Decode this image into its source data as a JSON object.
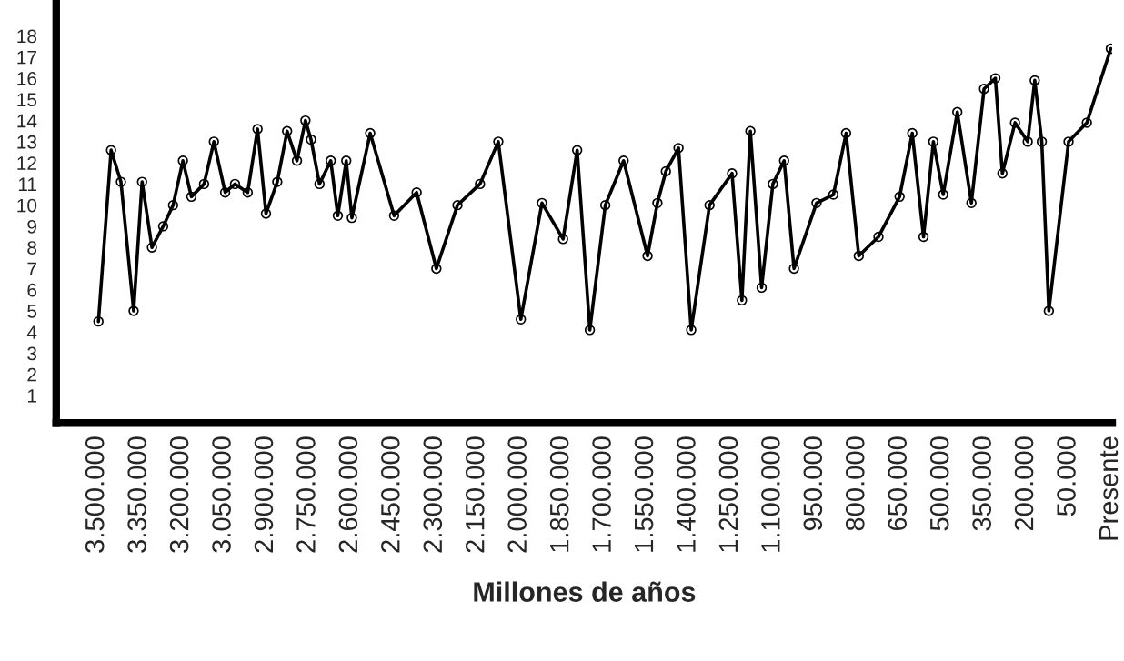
{
  "chart_data": {
    "type": "line",
    "xlabel": "Millones de años",
    "xlim": [
      3645000,
      -105000
    ],
    "ylim": [
      -0.3,
      19.7
    ],
    "xticks": [
      {
        "value": 3500000,
        "label": "3.500.000"
      },
      {
        "value": 3350000,
        "label": "3.350.000"
      },
      {
        "value": 3200000,
        "label": "3.200.000"
      },
      {
        "value": 3050000,
        "label": "3.050.000"
      },
      {
        "value": 2900000,
        "label": "2.900.000"
      },
      {
        "value": 2750000,
        "label": "2.750.000"
      },
      {
        "value": 2600000,
        "label": "2.600.000"
      },
      {
        "value": 2450000,
        "label": "2.450.000"
      },
      {
        "value": 2300000,
        "label": "2.300.000"
      },
      {
        "value": 2150000,
        "label": "2.150.000"
      },
      {
        "value": 2000000,
        "label": "2.000.000"
      },
      {
        "value": 1850000,
        "label": "1.850.000"
      },
      {
        "value": 1700000,
        "label": "1.700.000"
      },
      {
        "value": 1550000,
        "label": "1.550.000"
      },
      {
        "value": 1400000,
        "label": "1.400.000"
      },
      {
        "value": 1250000,
        "label": "1.250.000"
      },
      {
        "value": 1100000,
        "label": "1.100.000"
      },
      {
        "value": 950000,
        "label": "950.000"
      },
      {
        "value": 800000,
        "label": "800.000"
      },
      {
        "value": 650000,
        "label": "650.000"
      },
      {
        "value": 500000,
        "label": "500.000"
      },
      {
        "value": 350000,
        "label": "350.000"
      },
      {
        "value": 200000,
        "label": "200.000"
      },
      {
        "value": 50000,
        "label": "50.000"
      },
      {
        "value": -100000,
        "label": "Presente"
      }
    ],
    "yticks": [
      1,
      2,
      3,
      4,
      5,
      6,
      7,
      8,
      9,
      10,
      11,
      12,
      13,
      14,
      15,
      16,
      17,
      18
    ],
    "grid": false,
    "marker": "circle",
    "line_style": "solid",
    "series": [
      {
        "color": "#000000",
        "x": [
          3495000,
          3450000,
          3415000,
          3370000,
          3340000,
          3305000,
          3265000,
          3230000,
          3195000,
          3165000,
          3120000,
          3085000,
          3045000,
          3010000,
          2965000,
          2930000,
          2900000,
          2860000,
          2825000,
          2790000,
          2760000,
          2740000,
          2710000,
          2670000,
          2645000,
          2615000,
          2595000,
          2530000,
          2445000,
          2365000,
          2295000,
          2220000,
          2140000,
          2075000,
          1995000,
          1920000,
          1845000,
          1795000,
          1750000,
          1695000,
          1630000,
          1545000,
          1510000,
          1480000,
          1435000,
          1390000,
          1325000,
          1245000,
          1210000,
          1180000,
          1140000,
          1100000,
          1060000,
          1025000,
          945000,
          885000,
          840000,
          795000,
          725000,
          650000,
          605000,
          565000,
          530000,
          495000,
          445000,
          395000,
          350000,
          310000,
          285000,
          240000,
          195000,
          170000,
          145000,
          120000,
          50000,
          -15000,
          -100000
        ],
        "values": [
          4.5,
          12.6,
          11.1,
          5.0,
          11.1,
          8.0,
          9.0,
          10.0,
          12.1,
          10.4,
          11.0,
          13.0,
          10.6,
          11.0,
          10.6,
          13.6,
          9.6,
          11.1,
          13.5,
          12.1,
          14.0,
          13.1,
          11.0,
          12.1,
          9.5,
          12.1,
          9.4,
          13.4,
          9.5,
          10.6,
          7.0,
          10.0,
          11.0,
          13.0,
          4.6,
          10.1,
          8.4,
          12.6,
          4.1,
          10.0,
          12.1,
          7.6,
          10.1,
          11.6,
          12.7,
          4.1,
          10.0,
          11.5,
          5.5,
          13.5,
          6.1,
          11.0,
          12.1,
          7.0,
          10.1,
          10.5,
          13.4,
          7.6,
          8.5,
          10.4,
          13.4,
          8.5,
          13.0,
          10.5,
          14.4,
          10.1,
          15.5,
          16.0,
          11.5,
          13.9,
          13.0,
          15.9,
          13.0,
          5.0,
          13.0,
          13.9,
          17.4
        ]
      }
    ]
  }
}
